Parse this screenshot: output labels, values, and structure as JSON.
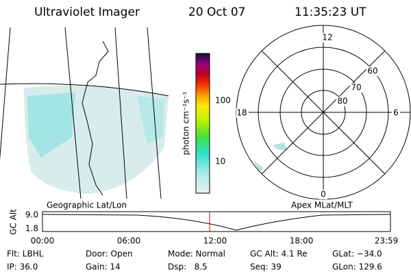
{
  "header": {
    "title": "Ultraviolet Imager",
    "date": "20 Oct 07",
    "time": "11:35:23 UT"
  },
  "colorbar": {
    "label": "photon cm⁻²s⁻¹",
    "ticks": [
      "100",
      "10"
    ]
  },
  "map": {
    "label": "Geographic Lat/Lon"
  },
  "polar": {
    "label": "Apex MLat/MLT",
    "mlt": [
      "12",
      "18",
      "6",
      "0"
    ],
    "mlat": [
      "60",
      "70",
      "80"
    ]
  },
  "altitude": {
    "axis_label": "GC Alt",
    "yticks": [
      "9.0",
      "1.8"
    ],
    "xticks": [
      "00:00",
      "06:00",
      "12:00",
      "18:00",
      "23:59"
    ]
  },
  "status": [
    [
      "Flt: LBHL",
      "Door: Open",
      "Mode: Normal",
      "GC Alt: 4.1 Re",
      "GLat: −34.0"
    ],
    [
      "IP: 36.0",
      "Gain: 14",
      "Dsp:   8.5",
      "Seq: 39",
      "GLon: 129.6"
    ]
  ]
}
